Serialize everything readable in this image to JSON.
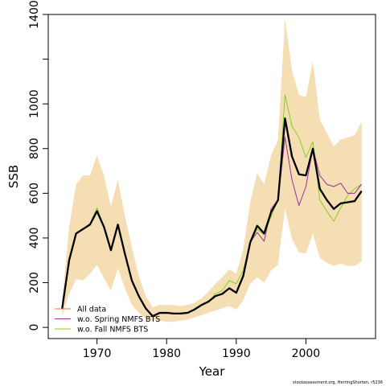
{
  "chart_data": {
    "type": "line",
    "title": "",
    "xlabel": "Year",
    "ylabel": "SSB",
    "xlim": [
      1963,
      2010
    ],
    "ylim": [
      -50,
      1400
    ],
    "x_ticks": [
      1970,
      1980,
      1990,
      2000
    ],
    "y_ticks": [
      0,
      200,
      400,
      600,
      800,
      1000,
      1200,
      1400
    ],
    "y_tick_labels": [
      "0",
      "200",
      "400",
      "600",
      "800",
      "1000",
      "",
      "1400"
    ],
    "grid": false,
    "legend_position": "bottom-left",
    "credit": "stockassessment.org, HerringShorten, r5236",
    "colors": {
      "band": "#f5deb3",
      "all_data": "#000000",
      "all_data_legend": "#e8772e",
      "spring": "#9b30a0",
      "fall": "#7fd320"
    },
    "years": [
      1965,
      1966,
      1967,
      1968,
      1969,
      1970,
      1971,
      1972,
      1973,
      1974,
      1975,
      1976,
      1977,
      1978,
      1979,
      1980,
      1981,
      1982,
      1983,
      1984,
      1985,
      1986,
      1987,
      1988,
      1989,
      1990,
      1991,
      1992,
      1993,
      1994,
      1995,
      1996,
      1997,
      1998,
      1999,
      2000,
      2001,
      2002,
      2003,
      2004,
      2005,
      2006,
      2007,
      2008
    ],
    "band": {
      "name": "confidence band",
      "lower": [
        50,
        150,
        215,
        210,
        240,
        280,
        220,
        165,
        265,
        175,
        100,
        65,
        40,
        30,
        30,
        25,
        25,
        30,
        35,
        45,
        55,
        65,
        75,
        85,
        95,
        80,
        120,
        195,
        225,
        200,
        255,
        280,
        530,
        395,
        335,
        330,
        420,
        310,
        290,
        275,
        285,
        275,
        275,
        295
      ],
      "upper": [
        120,
        450,
        640,
        680,
        680,
        770,
        680,
        540,
        660,
        500,
        360,
        230,
        140,
        90,
        100,
        100,
        100,
        95,
        100,
        110,
        130,
        160,
        195,
        225,
        260,
        240,
        350,
        560,
        690,
        640,
        770,
        840,
        1380,
        1150,
        1040,
        1030,
        1190,
        930,
        870,
        810,
        840,
        850,
        860,
        920
      ]
    },
    "series": [
      {
        "name": "All data",
        "values": [
          85,
          300,
          420,
          440,
          460,
          520,
          450,
          345,
          460,
          330,
          210,
          140,
          85,
          50,
          65,
          65,
          62,
          62,
          65,
          80,
          100,
          115,
          140,
          150,
          175,
          155,
          230,
          380,
          455,
          420,
          515,
          570,
          935,
          765,
          685,
          680,
          800,
          620,
          570,
          530,
          555,
          560,
          565,
          610
        ]
      },
      {
        "name": "w.o. Spring NMFS BTS",
        "values": [
          85,
          300,
          420,
          440,
          460,
          520,
          450,
          345,
          460,
          330,
          210,
          140,
          85,
          50,
          65,
          65,
          62,
          62,
          65,
          80,
          100,
          115,
          140,
          150,
          175,
          155,
          230,
          380,
          425,
          385,
          530,
          570,
          850,
          660,
          545,
          630,
          800,
          680,
          640,
          630,
          645,
          600,
          600,
          640
        ]
      },
      {
        "name": "w.o. Fall NMFS BTS",
        "values": [
          85,
          300,
          420,
          440,
          465,
          535,
          450,
          345,
          460,
          330,
          210,
          140,
          85,
          50,
          65,
          65,
          62,
          62,
          65,
          80,
          100,
          115,
          150,
          165,
          210,
          195,
          255,
          375,
          440,
          415,
          495,
          575,
          1040,
          900,
          850,
          760,
          830,
          570,
          520,
          475,
          535,
          590,
          620,
          640
        ]
      }
    ]
  }
}
